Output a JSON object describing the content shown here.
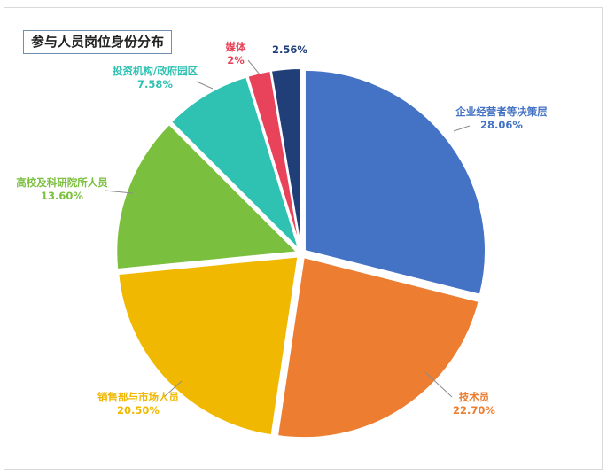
{
  "chart_data": {
    "type": "pie",
    "title": "参与人员岗位身份分布",
    "slices": [
      {
        "label": "企业经营者等决策层",
        "value": 28.06,
        "display": "28.06%",
        "color": "#4472C4"
      },
      {
        "label": "技术员",
        "value": 22.7,
        "display": "22.70%",
        "color": "#ED7D31"
      },
      {
        "label": "销售部与市场人员",
        "value": 20.5,
        "display": "20.50%",
        "color": "#F0B800"
      },
      {
        "label": "高校及科研院所人员",
        "value": 13.6,
        "display": "13.60%",
        "color": "#7BBF3E"
      },
      {
        "label": "投资机构/政府园区",
        "value": 7.58,
        "display": "7.58%",
        "color": "#2FC2B2"
      },
      {
        "label": "媒体",
        "value": 2.0,
        "display": "2%",
        "color": "#E8435A"
      },
      {
        "label": "",
        "value": 2.56,
        "display": "2.56%",
        "color": "#203F78"
      }
    ],
    "start_angle_deg": 0,
    "direction": "clockwise",
    "legend": "none",
    "label_style": "outside-with-leader-lines"
  }
}
